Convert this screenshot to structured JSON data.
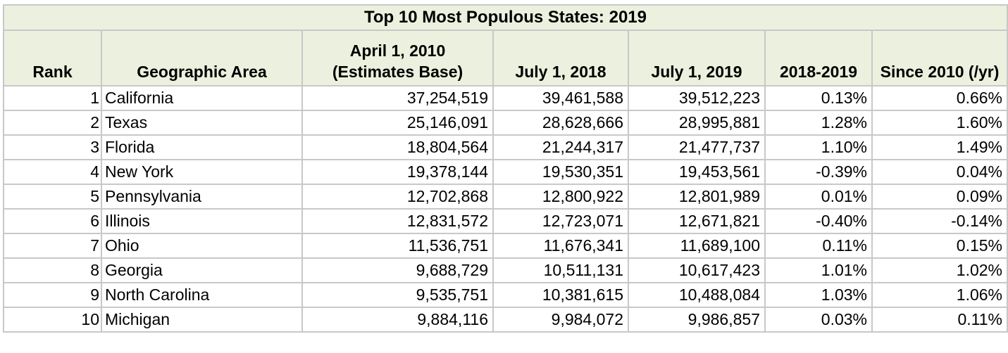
{
  "title": "Top 10 Most Populous States: 2019",
  "headers": {
    "rank": "Rank",
    "area": "Geographic Area",
    "base_line1": "April 1, 2010",
    "base_line2": "(Estimates Base)",
    "jul2018": "July 1, 2018",
    "jul2019": "July 1, 2019",
    "chg1819": "2018-2019",
    "since2010": "Since 2010 (/yr)"
  },
  "rows": [
    {
      "rank": "1",
      "area": "California",
      "base": "37,254,519",
      "jul2018": "39,461,588",
      "jul2019": "39,512,223",
      "chg1819": "0.13%",
      "since2010": "0.66%"
    },
    {
      "rank": "2",
      "area": "Texas",
      "base": "25,146,091",
      "jul2018": "28,628,666",
      "jul2019": "28,995,881",
      "chg1819": "1.28%",
      "since2010": "1.60%"
    },
    {
      "rank": "3",
      "area": "Florida",
      "base": "18,804,564",
      "jul2018": "21,244,317",
      "jul2019": "21,477,737",
      "chg1819": "1.10%",
      "since2010": "1.49%"
    },
    {
      "rank": "4",
      "area": "New York",
      "base": "19,378,144",
      "jul2018": "19,530,351",
      "jul2019": "19,453,561",
      "chg1819": "-0.39%",
      "since2010": "0.04%"
    },
    {
      "rank": "5",
      "area": "Pennsylvania",
      "base": "12,702,868",
      "jul2018": "12,800,922",
      "jul2019": "12,801,989",
      "chg1819": "0.01%",
      "since2010": "0.09%"
    },
    {
      "rank": "6",
      "area": "Illinois",
      "base": "12,831,572",
      "jul2018": "12,723,071",
      "jul2019": "12,671,821",
      "chg1819": "-0.40%",
      "since2010": "-0.14%"
    },
    {
      "rank": "7",
      "area": "Ohio",
      "base": "11,536,751",
      "jul2018": "11,676,341",
      "jul2019": "11,689,100",
      "chg1819": "0.11%",
      "since2010": "0.15%"
    },
    {
      "rank": "8",
      "area": "Georgia",
      "base": "9,688,729",
      "jul2018": "10,511,131",
      "jul2019": "10,617,423",
      "chg1819": "1.01%",
      "since2010": "1.02%"
    },
    {
      "rank": "9",
      "area": "North Carolina",
      "base": "9,535,751",
      "jul2018": "10,381,615",
      "jul2019": "10,488,084",
      "chg1819": "1.03%",
      "since2010": "1.06%"
    },
    {
      "rank": "10",
      "area": "Michigan",
      "base": "9,884,116",
      "jul2018": "9,984,072",
      "jul2019": "9,986,857",
      "chg1819": "0.03%",
      "since2010": "0.11%"
    }
  ],
  "colors": {
    "header_background": "#ebf1de",
    "grid_lines": "#c8c8c8"
  }
}
